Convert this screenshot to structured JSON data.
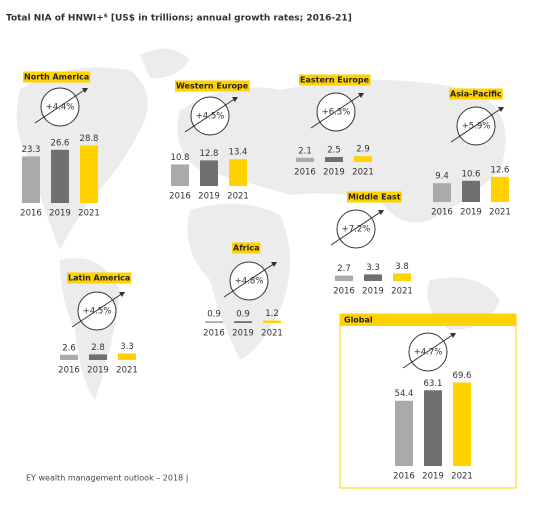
{
  "title": "Total NIA of HNWI+⁶ [US$ in trillions; annual growth rates; 2016-21]",
  "source": "EY wealth management outlook – 2018 |",
  "chart_data": [
    {
      "type": "bar",
      "title": "North America",
      "annotation": "+4.4%",
      "categories": [
        "2016",
        "2019",
        "2021"
      ],
      "values": [
        23.3,
        26.6,
        28.8
      ],
      "colors": [
        "#aaaaaa",
        "#707070",
        "#ffd200"
      ]
    },
    {
      "type": "bar",
      "title": "Western Europe",
      "annotation": "+4.5%",
      "categories": [
        "2016",
        "2019",
        "2021"
      ],
      "values": [
        10.8,
        12.8,
        13.4
      ],
      "colors": [
        "#aaaaaa",
        "#707070",
        "#ffd200"
      ]
    },
    {
      "type": "bar",
      "title": "Eastern Europe",
      "annotation": "+6.3%",
      "categories": [
        "2016",
        "2019",
        "2021"
      ],
      "values": [
        2.1,
        2.5,
        2.9
      ],
      "colors": [
        "#aaaaaa",
        "#707070",
        "#ffd200"
      ]
    },
    {
      "type": "bar",
      "title": "Asia-Pacific",
      "annotation": "+5.9%",
      "categories": [
        "2016",
        "2019",
        "2021"
      ],
      "values": [
        9.4,
        10.6,
        12.6
      ],
      "colors": [
        "#aaaaaa",
        "#707070",
        "#ffd200"
      ]
    },
    {
      "type": "bar",
      "title": "Middle East",
      "annotation": "+7.2%",
      "categories": [
        "2016",
        "2019",
        "2021"
      ],
      "values": [
        2.7,
        3.3,
        3.8
      ],
      "colors": [
        "#aaaaaa",
        "#707070",
        "#ffd200"
      ]
    },
    {
      "type": "bar",
      "title": "Africa",
      "annotation": "+4.8%",
      "categories": [
        "2016",
        "2019",
        "2021"
      ],
      "values": [
        0.9,
        0.9,
        1.2
      ],
      "colors": [
        "#aaaaaa",
        "#707070",
        "#ffd200"
      ]
    },
    {
      "type": "bar",
      "title": "Latin America",
      "annotation": "+4.5%",
      "categories": [
        "2016",
        "2019",
        "2021"
      ],
      "values": [
        2.6,
        2.8,
        3.3
      ],
      "colors": [
        "#aaaaaa",
        "#707070",
        "#ffd200"
      ]
    },
    {
      "type": "bar",
      "title": "Global",
      "annotation": "+4.7%",
      "categories": [
        "2016",
        "2019",
        "2021"
      ],
      "values": [
        54.4,
        63.1,
        69.6
      ],
      "colors": [
        "#aaaaaa",
        "#707070",
        "#ffd200"
      ]
    }
  ]
}
